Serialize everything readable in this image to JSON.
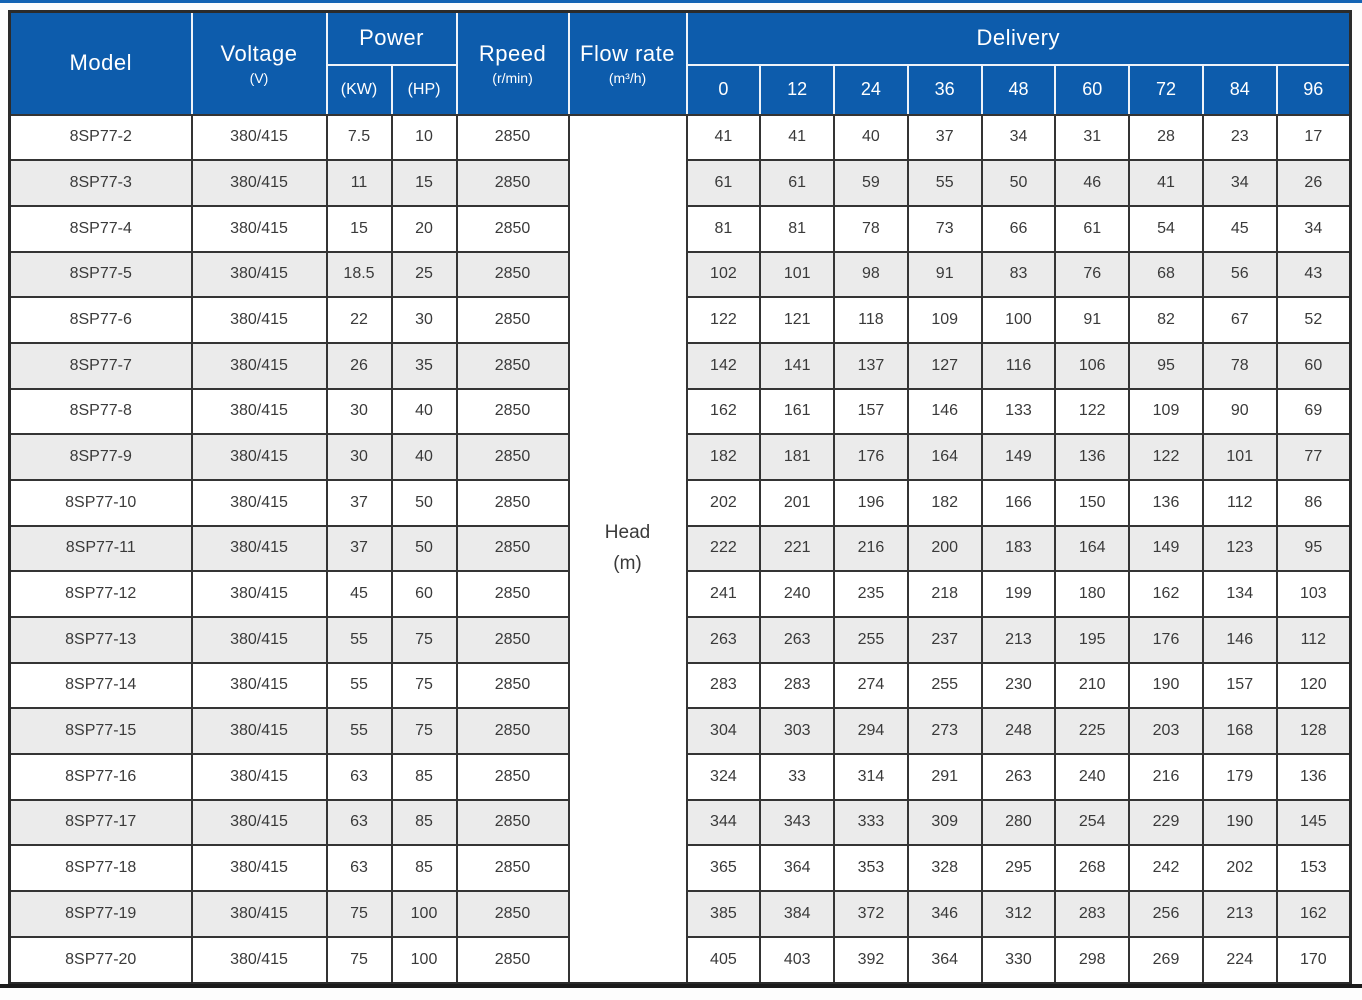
{
  "colors": {
    "header_bg": "#0d5cac",
    "header_text": "#ffffff",
    "row_alt_bg": "#ebebeb",
    "border_dark": "#343434",
    "top_rule": "#1464b4",
    "bottom_rule": "#1b1b1b"
  },
  "header": {
    "model": "Model",
    "voltage": "Voltage",
    "voltage_unit": "(V)",
    "power": "Power",
    "power_kw": "(KW)",
    "power_hp": "(HP)",
    "speed": "Rpeed",
    "speed_unit": "(r/min)",
    "flow_rate": "Flow rate",
    "flow_rate_unit": "(m³/h)",
    "delivery": "Delivery",
    "delivery_flows": [
      "0",
      "12",
      "24",
      "36",
      "48",
      "60",
      "72",
      "84",
      "96"
    ]
  },
  "head_cell": {
    "label": "Head",
    "unit": "(m)"
  },
  "rows": [
    {
      "model": "8SP77-2",
      "voltage": "380/415",
      "kw": "7.5",
      "hp": "10",
      "speed": "2850",
      "delivery": [
        "41",
        "41",
        "40",
        "37",
        "34",
        "31",
        "28",
        "23",
        "17"
      ]
    },
    {
      "model": "8SP77-3",
      "voltage": "380/415",
      "kw": "11",
      "hp": "15",
      "speed": "2850",
      "delivery": [
        "61",
        "61",
        "59",
        "55",
        "50",
        "46",
        "41",
        "34",
        "26"
      ]
    },
    {
      "model": "8SP77-4",
      "voltage": "380/415",
      "kw": "15",
      "hp": "20",
      "speed": "2850",
      "delivery": [
        "81",
        "81",
        "78",
        "73",
        "66",
        "61",
        "54",
        "45",
        "34"
      ]
    },
    {
      "model": "8SP77-5",
      "voltage": "380/415",
      "kw": "18.5",
      "hp": "25",
      "speed": "2850",
      "delivery": [
        "102",
        "101",
        "98",
        "91",
        "83",
        "76",
        "68",
        "56",
        "43"
      ]
    },
    {
      "model": "8SP77-6",
      "voltage": "380/415",
      "kw": "22",
      "hp": "30",
      "speed": "2850",
      "delivery": [
        "122",
        "121",
        "118",
        "109",
        "100",
        "91",
        "82",
        "67",
        "52"
      ]
    },
    {
      "model": "8SP77-7",
      "voltage": "380/415",
      "kw": "26",
      "hp": "35",
      "speed": "2850",
      "delivery": [
        "142",
        "141",
        "137",
        "127",
        "116",
        "106",
        "95",
        "78",
        "60"
      ]
    },
    {
      "model": "8SP77-8",
      "voltage": "380/415",
      "kw": "30",
      "hp": "40",
      "speed": "2850",
      "delivery": [
        "162",
        "161",
        "157",
        "146",
        "133",
        "122",
        "109",
        "90",
        "69"
      ]
    },
    {
      "model": "8SP77-9",
      "voltage": "380/415",
      "kw": "30",
      "hp": "40",
      "speed": "2850",
      "delivery": [
        "182",
        "181",
        "176",
        "164",
        "149",
        "136",
        "122",
        "101",
        "77"
      ]
    },
    {
      "model": "8SP77-10",
      "voltage": "380/415",
      "kw": "37",
      "hp": "50",
      "speed": "2850",
      "delivery": [
        "202",
        "201",
        "196",
        "182",
        "166",
        "150",
        "136",
        "112",
        "86"
      ]
    },
    {
      "model": "8SP77-11",
      "voltage": "380/415",
      "kw": "37",
      "hp": "50",
      "speed": "2850",
      "delivery": [
        "222",
        "221",
        "216",
        "200",
        "183",
        "164",
        "149",
        "123",
        "95"
      ]
    },
    {
      "model": "8SP77-12",
      "voltage": "380/415",
      "kw": "45",
      "hp": "60",
      "speed": "2850",
      "delivery": [
        "241",
        "240",
        "235",
        "218",
        "199",
        "180",
        "162",
        "134",
        "103"
      ]
    },
    {
      "model": "8SP77-13",
      "voltage": "380/415",
      "kw": "55",
      "hp": "75",
      "speed": "2850",
      "delivery": [
        "263",
        "263",
        "255",
        "237",
        "213",
        "195",
        "176",
        "146",
        "112"
      ]
    },
    {
      "model": "8SP77-14",
      "voltage": "380/415",
      "kw": "55",
      "hp": "75",
      "speed": "2850",
      "delivery": [
        "283",
        "283",
        "274",
        "255",
        "230",
        "210",
        "190",
        "157",
        "120"
      ]
    },
    {
      "model": "8SP77-15",
      "voltage": "380/415",
      "kw": "55",
      "hp": "75",
      "speed": "2850",
      "delivery": [
        "304",
        "303",
        "294",
        "273",
        "248",
        "225",
        "203",
        "168",
        "128"
      ]
    },
    {
      "model": "8SP77-16",
      "voltage": "380/415",
      "kw": "63",
      "hp": "85",
      "speed": "2850",
      "delivery": [
        "324",
        "33",
        "314",
        "291",
        "263",
        "240",
        "216",
        "179",
        "136"
      ]
    },
    {
      "model": "8SP77-17",
      "voltage": "380/415",
      "kw": "63",
      "hp": "85",
      "speed": "2850",
      "delivery": [
        "344",
        "343",
        "333",
        "309",
        "280",
        "254",
        "229",
        "190",
        "145"
      ]
    },
    {
      "model": "8SP77-18",
      "voltage": "380/415",
      "kw": "63",
      "hp": "85",
      "speed": "2850",
      "delivery": [
        "365",
        "364",
        "353",
        "328",
        "295",
        "268",
        "242",
        "202",
        "153"
      ]
    },
    {
      "model": "8SP77-19",
      "voltage": "380/415",
      "kw": "75",
      "hp": "100",
      "speed": "2850",
      "delivery": [
        "385",
        "384",
        "372",
        "346",
        "312",
        "283",
        "256",
        "213",
        "162"
      ]
    },
    {
      "model": "8SP77-20",
      "voltage": "380/415",
      "kw": "75",
      "hp": "100",
      "speed": "2850",
      "delivery": [
        "405",
        "403",
        "392",
        "364",
        "330",
        "298",
        "269",
        "224",
        "170"
      ]
    }
  ]
}
